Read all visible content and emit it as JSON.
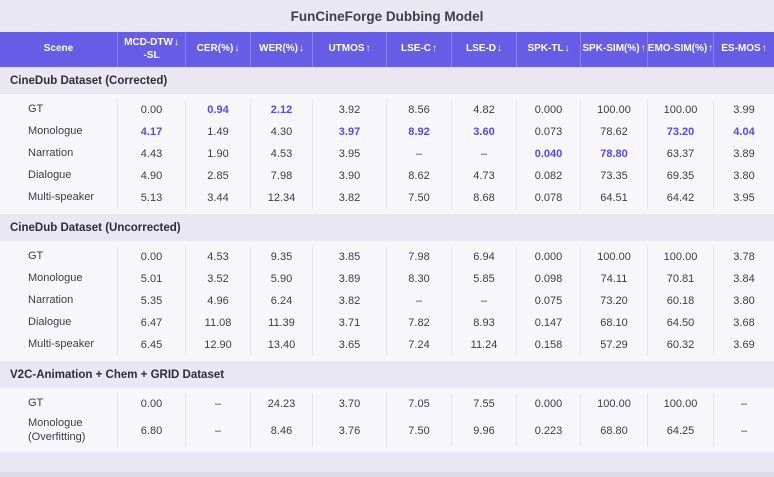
{
  "title": "FunCineForge Dubbing Model",
  "table": {
    "columns": [
      {
        "label": "Scene",
        "arrow": ""
      },
      {
        "label": "MCD-DTW\n-SL",
        "arrow": "↓"
      },
      {
        "label": "CER(%)",
        "arrow": "↓"
      },
      {
        "label": "WER(%)",
        "arrow": "↓"
      },
      {
        "label": "UTMOS",
        "arrow": "↑"
      },
      {
        "label": "LSE-C",
        "arrow": "↑"
      },
      {
        "label": "LSE-D",
        "arrow": "↓"
      },
      {
        "label": "SPK-TL",
        "arrow": "↓"
      },
      {
        "label": "SPK-SIM(%)",
        "arrow": "↑"
      },
      {
        "label": "EMO-SIM(%)",
        "arrow": "↑"
      },
      {
        "label": "ES-MOS",
        "arrow": "↑"
      }
    ],
    "sections": [
      {
        "name": "CineDub Dataset (Corrected)",
        "rows": [
          {
            "scene": "GT",
            "values": [
              "0.00",
              "0.94",
              "2.12",
              "3.92",
              "8.56",
              "4.82",
              "0.000",
              "100.00",
              "100.00",
              "3.99"
            ],
            "highlight": [
              1,
              2
            ]
          },
          {
            "scene": "Monologue",
            "values": [
              "4.17",
              "1.49",
              "4.30",
              "3.97",
              "8.92",
              "3.60",
              "0.073",
              "78.62",
              "73.20",
              "4.04"
            ],
            "highlight": [
              0,
              3,
              4,
              5,
              8,
              9
            ]
          },
          {
            "scene": "Narration",
            "values": [
              "4.43",
              "1.90",
              "4.53",
              "3.95",
              "–",
              "–",
              "0.040",
              "78.80",
              "63.37",
              "3.89"
            ],
            "highlight": [
              6,
              7
            ]
          },
          {
            "scene": "Dialogue",
            "values": [
              "4.90",
              "2.85",
              "7.98",
              "3.90",
              "8.62",
              "4.73",
              "0.082",
              "73.35",
              "69.35",
              "3.80"
            ],
            "highlight": []
          },
          {
            "scene": "Multi-speaker",
            "values": [
              "5.13",
              "3.44",
              "12.34",
              "3.82",
              "7.50",
              "8.68",
              "0.078",
              "64.51",
              "64.42",
              "3.95"
            ],
            "highlight": []
          }
        ]
      },
      {
        "name": "CineDub Dataset (Uncorrected)",
        "rows": [
          {
            "scene": "GT",
            "values": [
              "0.00",
              "4.53",
              "9.35",
              "3.85",
              "7.98",
              "6.94",
              "0.000",
              "100.00",
              "100.00",
              "3.78"
            ],
            "highlight": []
          },
          {
            "scene": "Monologue",
            "values": [
              "5.01",
              "3.52",
              "5.90",
              "3.89",
              "8.30",
              "5.85",
              "0.098",
              "74.11",
              "70.81",
              "3.84"
            ],
            "highlight": []
          },
          {
            "scene": "Narration",
            "values": [
              "5.35",
              "4.96",
              "6.24",
              "3.82",
              "–",
              "–",
              "0.075",
              "73.20",
              "60.18",
              "3.80"
            ],
            "highlight": []
          },
          {
            "scene": "Dialogue",
            "values": [
              "6.47",
              "11.08",
              "11.39",
              "3.71",
              "7.82",
              "8.93",
              "0.147",
              "68.10",
              "64.50",
              "3.68"
            ],
            "highlight": []
          },
          {
            "scene": "Multi-speaker",
            "values": [
              "6.45",
              "12.90",
              "13.40",
              "3.65",
              "7.24",
              "11.24",
              "0.158",
              "57.29",
              "60.32",
              "3.69"
            ],
            "highlight": []
          }
        ]
      },
      {
        "name": "V2C-Animation + Chem + GRID Dataset",
        "rows": [
          {
            "scene": "GT",
            "values": [
              "0.00",
              "–",
              "24.23",
              "3.70",
              "7.05",
              "7.55",
              "0.000",
              "100.00",
              "100.00",
              "–"
            ],
            "highlight": []
          },
          {
            "scene": "Monologue\n(Overfitting)",
            "values": [
              "6.80",
              "–",
              "8.46",
              "3.76",
              "7.50",
              "9.96",
              "0.223",
              "68.80",
              "64.25",
              "–"
            ],
            "highlight": []
          }
        ]
      }
    ]
  },
  "colors": {
    "header_background": "#665ce6",
    "highlight_text": "#5a49dc",
    "page_background": "#e9e7f2",
    "band_background": "#f7f7fb"
  }
}
